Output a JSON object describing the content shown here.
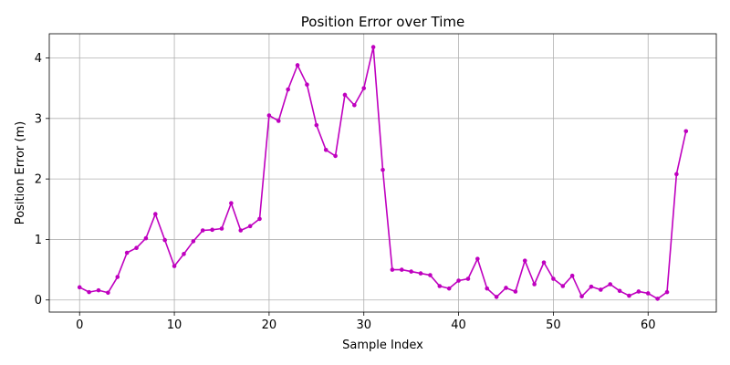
{
  "chart_data": {
    "type": "line",
    "title": "Position Error over Time",
    "xlabel": "Sample Index",
    "ylabel": "Position Error (m)",
    "xlim": [
      -3.2,
      67.2
    ],
    "ylim": [
      -0.2,
      4.4
    ],
    "xticks": [
      0,
      10,
      20,
      30,
      40,
      50,
      60
    ],
    "yticks": [
      0,
      1,
      2,
      3,
      4
    ],
    "grid": true,
    "color": "#bf00bf",
    "marker": "circle",
    "series": [
      {
        "x": [
          0,
          1,
          2,
          3,
          4,
          5,
          6,
          7,
          8,
          9,
          10,
          11,
          12,
          13,
          14,
          15,
          16,
          17,
          18,
          19,
          20,
          21,
          22,
          23,
          24,
          25,
          26,
          27,
          28,
          29,
          30,
          31,
          32,
          33,
          34,
          35,
          36,
          37,
          38,
          39,
          40,
          41,
          42,
          43,
          44,
          45,
          46,
          47,
          48,
          49,
          50,
          51,
          52,
          53,
          54,
          55,
          56,
          57,
          58,
          59,
          60,
          61,
          62,
          63,
          64
        ],
        "values": [
          0.21,
          0.13,
          0.16,
          0.12,
          0.38,
          0.78,
          0.86,
          1.02,
          1.42,
          0.99,
          0.56,
          0.76,
          0.97,
          1.15,
          1.16,
          1.18,
          1.6,
          1.15,
          1.22,
          1.34,
          3.05,
          2.96,
          3.48,
          3.88,
          3.56,
          2.89,
          2.48,
          2.38,
          3.39,
          3.22,
          3.5,
          4.18,
          2.15,
          0.5,
          0.5,
          0.47,
          0.44,
          0.41,
          0.23,
          0.19,
          0.32,
          0.35,
          0.68,
          0.19,
          0.05,
          0.2,
          0.14,
          0.65,
          0.26,
          0.62,
          0.35,
          0.23,
          0.4,
          0.06,
          0.22,
          0.17,
          0.26,
          0.15,
          0.07,
          0.14,
          0.11,
          0.02,
          0.13,
          2.08,
          2.79
        ]
      }
    ]
  }
}
